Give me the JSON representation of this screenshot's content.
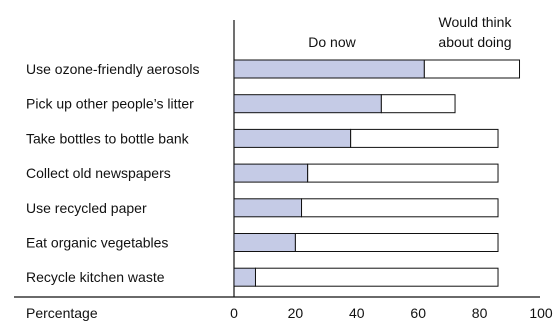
{
  "chart_data": {
    "type": "bar",
    "orientation": "horizontal",
    "stacked": true,
    "categories": [
      "Use ozone-friendly aerosols",
      "Pick up other people’s litter",
      "Take bottles to bottle bank",
      "Collect old newspapers",
      "Use recycled paper",
      "Eat organic vegetables",
      "Recycle kitchen waste"
    ],
    "series": [
      {
        "name": "Do now",
        "color": "#c5cbe6",
        "values": [
          62,
          48,
          38,
          24,
          22,
          20,
          7
        ]
      },
      {
        "name_lines": [
          "Would think",
          "about doing"
        ],
        "color": "#ffffff",
        "values": [
          31,
          24,
          48,
          62,
          64,
          66,
          79
        ]
      }
    ],
    "xlabel": "Percentage",
    "xlim": [
      0,
      100
    ],
    "xticks": [
      0,
      20,
      40,
      60,
      80,
      100
    ],
    "grid": false,
    "legend": "top, labels above bar columns"
  }
}
